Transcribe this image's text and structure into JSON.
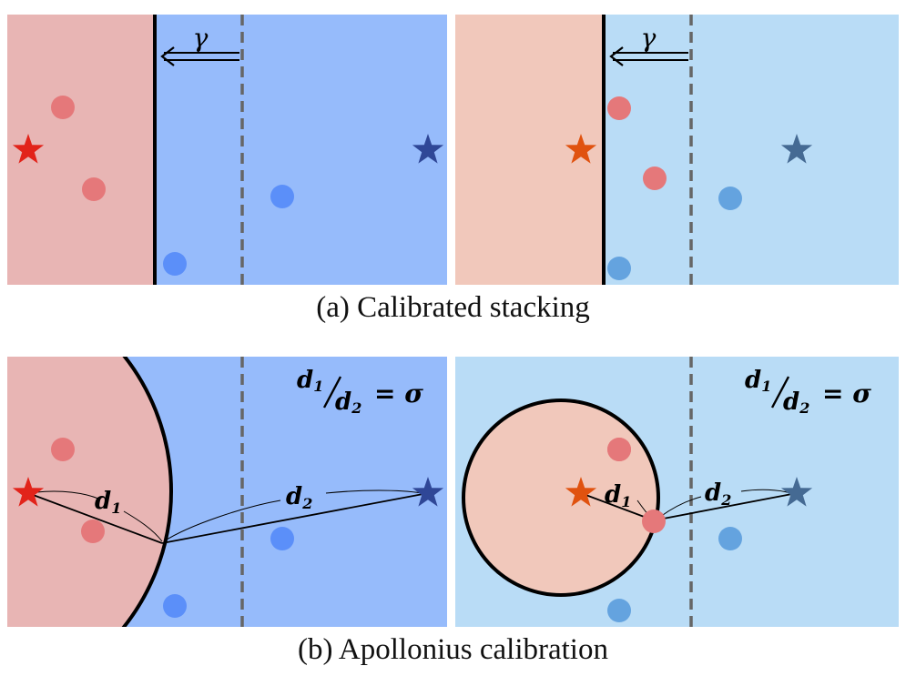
{
  "colors": {
    "red_region_a_left": "#e8b5b4",
    "blue_region_a_left": "#96bbfb",
    "red_region_a_right": "#f1c8bb",
    "blue_region_a_right": "#b9dcf6",
    "red_star_left": "#e2231a",
    "blue_star_left": "#2f4797",
    "red_star_right": "#e0520f",
    "blue_star_right": "#456a93",
    "red_dot": "#e5787a",
    "blue_dot_left": "#5b8ff9",
    "blue_dot_right": "#64a3df",
    "boundary": "#000000",
    "dashed": "#666666"
  },
  "panel_a": {
    "gamma_label": "γ",
    "caption": "(a) Calibrated stacking"
  },
  "panel_b": {
    "ratio_numerator": "d",
    "ratio_num_sub": "1",
    "ratio_denominator": "d",
    "ratio_den_sub": "2",
    "ratio_rhs": "= σ",
    "d1_label": "d",
    "d1_sub": "1",
    "d2_label": "d",
    "d2_sub": "2",
    "caption": "(b) Apollonius calibration"
  },
  "icons": {
    "star": "star-icon",
    "dot": "dot-icon",
    "arrow": "double-arrow-left-icon"
  }
}
